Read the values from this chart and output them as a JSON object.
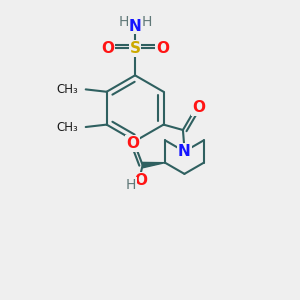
{
  "bg_color": "#efefef",
  "bond_color": "#2f6060",
  "bond_lw": 1.5,
  "colors": {
    "C": "#1a1a1a",
    "N": "#1414ff",
    "O": "#ff1414",
    "S": "#ccaa00",
    "H": "#607878"
  },
  "figsize": [
    3.0,
    3.0
  ],
  "dpi": 100,
  "xlim": [
    0.0,
    10.0
  ],
  "ylim": [
    0.0,
    10.0
  ]
}
